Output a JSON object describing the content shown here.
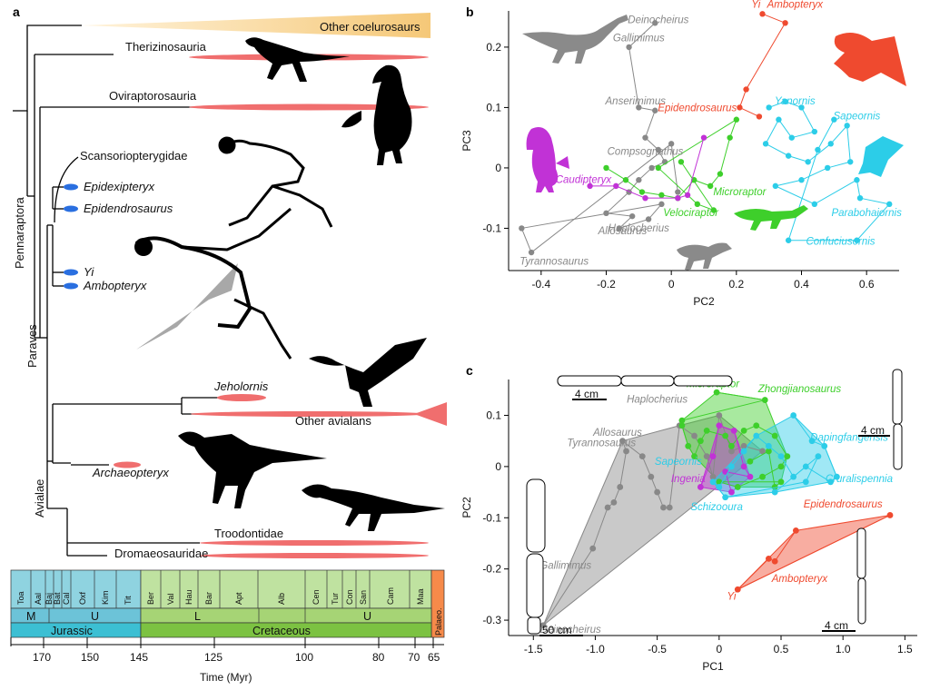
{
  "panels": {
    "a": "a",
    "b": "b",
    "c": "c"
  },
  "colors": {
    "gray": "#888888",
    "red": "#ef4a2f",
    "cyan": "#2ccde8",
    "green": "#3ecf2b",
    "magenta": "#c132d6",
    "orange_bar": "#f5c878",
    "pink_bar": "#f06e6e",
    "blue_dot": "#2a6fe0",
    "jurassic": "#3cbfd3",
    "cretaceous": "#7cc242",
    "palaeo": "#f68a4a"
  },
  "phylogeny": {
    "taxa": {
      "other_coelurosaurs": "Other coelurosaurs",
      "therizinosauria": "Therizinosauria",
      "oviraptorosauria": "Oviraptorosauria",
      "scansoriopterygidae": "Scansoriopterygidae",
      "epidexipteryx": "Epidexipteryx",
      "epidendrosaurus": "Epidendrosaurus",
      "yi": "Yi",
      "ambopteryx": "Ambopteryx",
      "jeholornis": "Jeholornis",
      "other_avialans": "Other avialans",
      "archaeopteryx": "Archaeopteryx",
      "troodontidae": "Troodontidae",
      "dromaeosauridae": "Dromaeosauridae"
    },
    "clades": {
      "pennaraptora": "Pennaraptora",
      "paraves": "Paraves",
      "avialae": "Avialae"
    }
  },
  "timescale": {
    "stages": [
      "Toa",
      "Aal",
      "Baj",
      "Bat",
      "Cal",
      "Oxf",
      "Kim",
      "Tit",
      "Ber",
      "Val",
      "Hau",
      "Bar",
      "Apt",
      "Alb",
      "Cen",
      "Tur",
      "Con",
      "San",
      "Cam",
      "Maa",
      "Palaeo."
    ],
    "epochs": [
      "M",
      "U",
      "L",
      "U"
    ],
    "periods": [
      "Jurassic",
      "Cretaceous"
    ],
    "ticks": [
      "170",
      "145",
      "125",
      "100",
      "80",
      "70",
      "65"
    ],
    "tick_150": "150",
    "axis_label": "Time (Myr)"
  },
  "chart_data": [
    {
      "type": "scatter",
      "id": "b",
      "xlabel": "PC2",
      "ylabel": "PC3",
      "xlim": [
        -0.5,
        0.7
      ],
      "ylim": [
        -0.17,
        0.26
      ],
      "xticks": [
        "-0.4",
        "-0.2",
        "0",
        "0.2",
        "0.4",
        "0.6"
      ],
      "yticks": [
        "-0.1",
        "0",
        "0.1",
        "0.2"
      ],
      "labels": [
        {
          "text": "Deinocheirus",
          "group": "gray",
          "x": -0.04,
          "y": 0.24
        },
        {
          "text": "Gallimimus",
          "group": "gray",
          "x": -0.1,
          "y": 0.21
        },
        {
          "text": "Anserimimus",
          "group": "gray",
          "x": -0.11,
          "y": 0.105
        },
        {
          "text": "Compsognathus",
          "group": "gray",
          "x": -0.08,
          "y": 0.022
        },
        {
          "text": "Allosaurus",
          "group": "gray",
          "x": -0.15,
          "y": -0.11
        },
        {
          "text": "Haplocherius",
          "group": "gray",
          "x": -0.1,
          "y": -0.105
        },
        {
          "text": "Tyrannosaurus",
          "group": "gray",
          "x": -0.36,
          "y": -0.16
        },
        {
          "text": "Yi",
          "group": "red",
          "x": 0.26,
          "y": 0.265
        },
        {
          "text": "Ambopteryx",
          "group": "red",
          "x": 0.38,
          "y": 0.265
        },
        {
          "text": "Epidendrosaurus",
          "group": "red",
          "x": 0.08,
          "y": 0.094
        },
        {
          "text": "Caudipteryx",
          "group": "magenta",
          "x": -0.27,
          "y": -0.025
        },
        {
          "text": "Microraptor",
          "group": "green",
          "x": 0.21,
          "y": -0.045
        },
        {
          "text": "Velociraptor",
          "group": "green",
          "x": 0.06,
          "y": -0.08
        },
        {
          "text": "Yanornis",
          "group": "cyan",
          "x": 0.38,
          "y": 0.105
        },
        {
          "text": "Sapeornis",
          "group": "cyan",
          "x": 0.57,
          "y": 0.08
        },
        {
          "text": "Parabohaiornis",
          "group": "cyan",
          "x": 0.6,
          "y": -0.08
        },
        {
          "text": "Confuciusornis",
          "group": "cyan",
          "x": 0.52,
          "y": -0.127
        }
      ],
      "series": [
        {
          "name": "gray",
          "points": [
            [
              -0.05,
              0.24
            ],
            [
              -0.13,
              0.2
            ],
            [
              -0.1,
              0.1
            ],
            [
              -0.05,
              0.095
            ],
            [
              -0.08,
              0.05
            ],
            [
              -0.04,
              0.03
            ],
            [
              -0.02,
              0.01
            ],
            [
              -0.06,
              0.0
            ],
            [
              -0.1,
              -0.02
            ],
            [
              -0.13,
              -0.04
            ],
            [
              -0.2,
              -0.075
            ],
            [
              -0.12,
              -0.08
            ],
            [
              -0.16,
              -0.1
            ],
            [
              -0.07,
              -0.085
            ],
            [
              -0.03,
              -0.06
            ],
            [
              -0.46,
              -0.1
            ],
            [
              -0.43,
              -0.14
            ],
            [
              0.0,
              0.04
            ],
            [
              0.02,
              -0.04
            ]
          ]
        },
        {
          "name": "red",
          "points": [
            [
              0.28,
              0.255
            ],
            [
              0.35,
              0.24
            ],
            [
              0.23,
              0.13
            ],
            [
              0.21,
              0.1
            ],
            [
              0.27,
              0.085
            ]
          ]
        },
        {
          "name": "green",
          "points": [
            [
              -0.2,
              0.0
            ],
            [
              -0.14,
              -0.02
            ],
            [
              -0.09,
              -0.04
            ],
            [
              -0.03,
              -0.045
            ],
            [
              0.02,
              -0.05
            ],
            [
              0.07,
              -0.02
            ],
            [
              0.12,
              -0.03
            ],
            [
              0.15,
              -0.01
            ],
            [
              0.18,
              0.05
            ],
            [
              0.2,
              0.08
            ],
            [
              -0.04,
              0.0
            ],
            [
              0.08,
              -0.06
            ],
            [
              0.13,
              -0.07
            ],
            [
              0.03,
              0.01
            ]
          ]
        },
        {
          "name": "magenta",
          "points": [
            [
              -0.25,
              -0.03
            ],
            [
              -0.17,
              -0.03
            ],
            [
              -0.08,
              -0.05
            ],
            [
              0.02,
              -0.05
            ],
            [
              0.05,
              -0.045
            ],
            [
              0.1,
              0.05
            ]
          ]
        },
        {
          "name": "cyan",
          "points": [
            [
              0.3,
              0.1
            ],
            [
              0.35,
              0.11
            ],
            [
              0.4,
              0.1
            ],
            [
              0.44,
              0.06
            ],
            [
              0.37,
              0.05
            ],
            [
              0.33,
              0.08
            ],
            [
              0.29,
              0.04
            ],
            [
              0.36,
              0.02
            ],
            [
              0.42,
              0.01
            ],
            [
              0.49,
              0.04
            ],
            [
              0.54,
              0.07
            ],
            [
              0.55,
              0.01
            ],
            [
              0.48,
              0.0
            ],
            [
              0.4,
              -0.02
            ],
            [
              0.32,
              -0.03
            ],
            [
              0.44,
              -0.06
            ],
            [
              0.57,
              -0.02
            ],
            [
              0.58,
              -0.05
            ],
            [
              0.67,
              -0.06
            ],
            [
              0.57,
              -0.12
            ],
            [
              0.36,
              -0.12
            ],
            [
              0.45,
              0.03
            ],
            [
              0.5,
              0.08
            ]
          ]
        }
      ]
    },
    {
      "type": "scatter",
      "id": "c",
      "xlabel": "PC1",
      "ylabel": "PC2",
      "xlim": [
        -1.7,
        1.6
      ],
      "ylim": [
        -0.33,
        0.17
      ],
      "xticks": [
        "-1.5",
        "-1.0",
        "-0.5",
        "0",
        "0.5",
        "1.0",
        "1.5"
      ],
      "yticks": [
        "-0.3",
        "-0.2",
        "-0.1",
        "0",
        "0.1"
      ],
      "scalebars": [
        "4 cm",
        "4 cm",
        "50 cm",
        "4 cm"
      ],
      "labels": [
        {
          "text": "Microraptor",
          "group": "green",
          "x": -0.05,
          "y": 0.155
        },
        {
          "text": "Zhongjianosaurus",
          "group": "green",
          "x": 0.65,
          "y": 0.145
        },
        {
          "text": "Haplocherius",
          "group": "gray",
          "x": -0.5,
          "y": 0.125
        },
        {
          "text": "Allosaurus",
          "group": "gray",
          "x": -0.82,
          "y": 0.06
        },
        {
          "text": "Tyrannosaurus",
          "group": "gray",
          "x": -0.95,
          "y": 0.04
        },
        {
          "text": "Dapingfangensis",
          "group": "cyan",
          "x": 1.05,
          "y": 0.05
        },
        {
          "text": "Sapeornis",
          "group": "cyan",
          "x": -0.33,
          "y": 0.003
        },
        {
          "text": "Ingenia",
          "group": "magenta",
          "x": -0.25,
          "y": -0.03
        },
        {
          "text": "Cruralispennia",
          "group": "cyan",
          "x": 1.13,
          "y": -0.03
        },
        {
          "text": "Epidendrosaurus",
          "group": "red",
          "x": 1.0,
          "y": -0.08
        },
        {
          "text": "Schizooura",
          "group": "cyan",
          "x": -0.02,
          "y": -0.085
        },
        {
          "text": "Gallimimus",
          "group": "gray",
          "x": -1.24,
          "y": -0.2
        },
        {
          "text": "Ambopteryx",
          "group": "red",
          "x": 0.65,
          "y": -0.225
        },
        {
          "text": "Yi",
          "group": "red",
          "x": 0.1,
          "y": -0.26
        },
        {
          "text": "Deinocheirus",
          "group": "gray",
          "x": -1.2,
          "y": -0.325
        }
      ],
      "series": [
        {
          "name": "gray",
          "points": [
            [
              -1.42,
              -0.31
            ],
            [
              -1.02,
              -0.16
            ],
            [
              -0.9,
              -0.08
            ],
            [
              -0.85,
              -0.07
            ],
            [
              -0.8,
              -0.04
            ],
            [
              -0.75,
              0.03
            ],
            [
              -0.78,
              0.05
            ],
            [
              -0.62,
              0.02
            ],
            [
              -0.55,
              -0.02
            ],
            [
              -0.5,
              -0.05
            ],
            [
              -0.45,
              -0.08
            ],
            [
              -0.4,
              -0.08
            ],
            [
              -0.32,
              0.08
            ],
            [
              -0.2,
              0.06
            ],
            [
              -0.1,
              0.02
            ],
            [
              -0.05,
              -0.02
            ],
            [
              0.0,
              0.1
            ],
            [
              0.1,
              0.03
            ],
            [
              0.2,
              0.04
            ],
            [
              0.35,
              0.03
            ]
          ]
        },
        {
          "name": "green",
          "points": [
            [
              -0.02,
              0.145
            ],
            [
              0.37,
              0.13
            ],
            [
              -0.3,
              0.09
            ],
            [
              -0.3,
              0.08
            ],
            [
              -0.25,
              0.04
            ],
            [
              -0.2,
              0.02
            ],
            [
              -0.15,
              0.05
            ],
            [
              -0.1,
              0.07
            ],
            [
              0.05,
              0.06
            ],
            [
              0.1,
              0.04
            ],
            [
              0.2,
              0.07
            ],
            [
              0.3,
              0.08
            ],
            [
              0.45,
              0.06
            ],
            [
              0.55,
              0.02
            ],
            [
              0.5,
              0.0
            ],
            [
              0.35,
              -0.02
            ],
            [
              0.15,
              -0.04
            ],
            [
              0.0,
              -0.03
            ],
            [
              0.5,
              -0.03
            ],
            [
              0.45,
              -0.04
            ],
            [
              0.4,
              0.03
            ],
            [
              0.25,
              0.01
            ]
          ]
        },
        {
          "name": "magenta",
          "points": [
            [
              -0.15,
              -0.04
            ],
            [
              -0.05,
              0.02
            ],
            [
              0.0,
              0.08
            ],
            [
              0.12,
              0.07
            ],
            [
              0.2,
              0.0
            ],
            [
              0.25,
              -0.02
            ],
            [
              0.05,
              -0.01
            ],
            [
              0.1,
              -0.05
            ]
          ]
        },
        {
          "name": "cyan",
          "points": [
            [
              0.6,
              0.1
            ],
            [
              0.75,
              0.05
            ],
            [
              0.85,
              0.04
            ],
            [
              0.95,
              -0.02
            ],
            [
              0.9,
              -0.03
            ],
            [
              0.7,
              0.0
            ],
            [
              0.6,
              -0.02
            ],
            [
              0.5,
              0.02
            ],
            [
              0.4,
              0.04
            ],
            [
              0.3,
              0.06
            ],
            [
              0.2,
              0.03
            ],
            [
              0.1,
              0.0
            ],
            [
              0.0,
              -0.04
            ],
            [
              -0.05,
              -0.03
            ],
            [
              0.05,
              -0.06
            ],
            [
              0.7,
              -0.03
            ],
            [
              0.8,
              0.02
            ],
            [
              0.45,
              -0.05
            ]
          ]
        },
        {
          "name": "red",
          "points": [
            [
              0.62,
              -0.125
            ],
            [
              0.45,
              -0.185
            ],
            [
              0.4,
              -0.18
            ],
            [
              0.15,
              -0.24
            ],
            [
              1.38,
              -0.095
            ]
          ]
        }
      ]
    }
  ]
}
